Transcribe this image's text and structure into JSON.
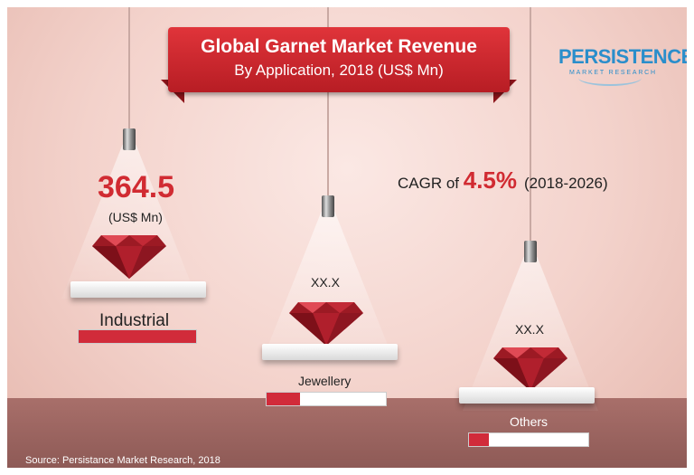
{
  "title": {
    "line1": "Global Garnet Market Revenue",
    "line2": "By Application, 2018 (US$ Mn)"
  },
  "logo": {
    "name": "PERSISTENCE",
    "tagline": "MARKET RESEARCH"
  },
  "cagr": {
    "prefix": "CAGR of ",
    "value": "4.5%",
    "period": "(2018-2026)"
  },
  "segments": [
    {
      "label": "Industrial",
      "value": "364.5",
      "unit": "(US$ Mn)",
      "share": 1.0
    },
    {
      "label": "Jewellery",
      "value": "XX.X",
      "share": 0.28
    },
    {
      "label": "Others",
      "value": "XX.X",
      "share": 0.17
    }
  ],
  "source": "Source: Persistance Market Research, 2018",
  "colors": {
    "accent": "#d12b32",
    "floor": "#9a625e",
    "logo": "#2a8ecb"
  }
}
